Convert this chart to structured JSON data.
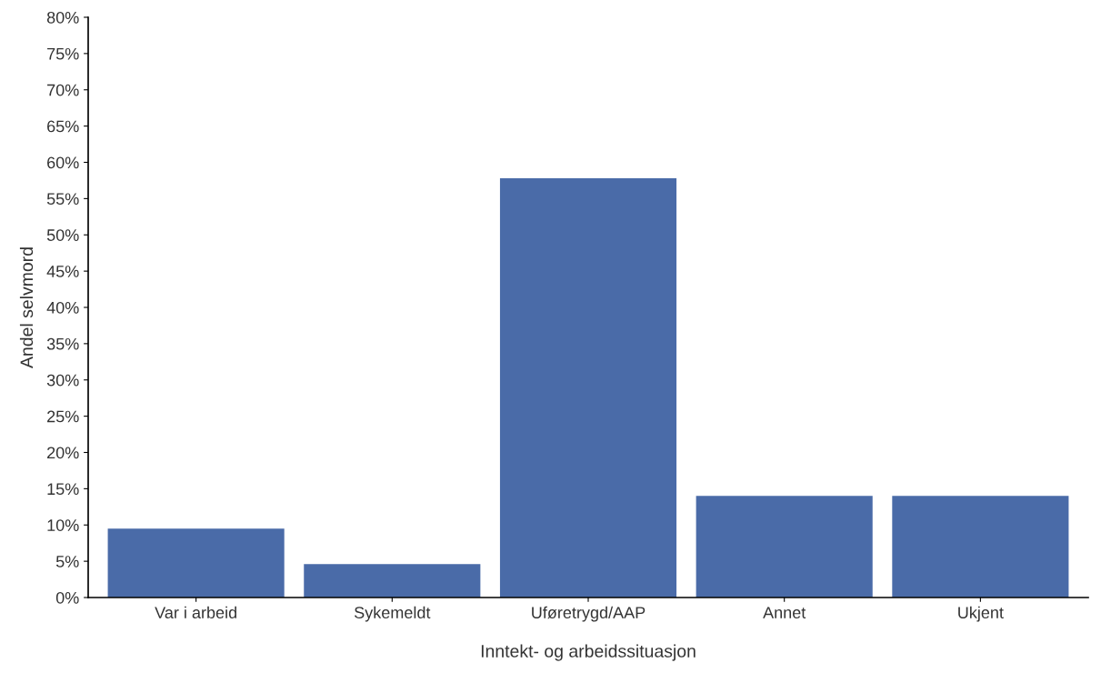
{
  "chart_data": {
    "type": "bar",
    "xlabel": "Inntekt- og arbeidssituasjon",
    "ylabel": "Andel selvmord",
    "categories": [
      "Var i arbeid",
      "Sykemeldt",
      "Uføretrygd/AAP",
      "Annet",
      "Ukjent"
    ],
    "values": [
      9.5,
      4.6,
      57.8,
      14.0,
      14.0
    ],
    "color": "#4a6ba8",
    "ylim": [
      0,
      80
    ],
    "yticks": [
      {
        "value": 0,
        "label": "0%"
      },
      {
        "value": 5,
        "label": "5%"
      },
      {
        "value": 10,
        "label": "10%"
      },
      {
        "value": 15,
        "label": "15%"
      },
      {
        "value": 20,
        "label": "20%"
      },
      {
        "value": 25,
        "label": "25%"
      },
      {
        "value": 30,
        "label": "30%"
      },
      {
        "value": 35,
        "label": "35%"
      },
      {
        "value": 40,
        "label": "40%"
      },
      {
        "value": 45,
        "label": "45%"
      },
      {
        "value": 50,
        "label": "50%"
      },
      {
        "value": 55,
        "label": "55%"
      },
      {
        "value": 60,
        "label": "60%"
      },
      {
        "value": 65,
        "label": "65%"
      },
      {
        "value": 70,
        "label": "70%"
      },
      {
        "value": 75,
        "label": "75%"
      },
      {
        "value": 80,
        "label": "80%"
      }
    ],
    "grid": false
  }
}
